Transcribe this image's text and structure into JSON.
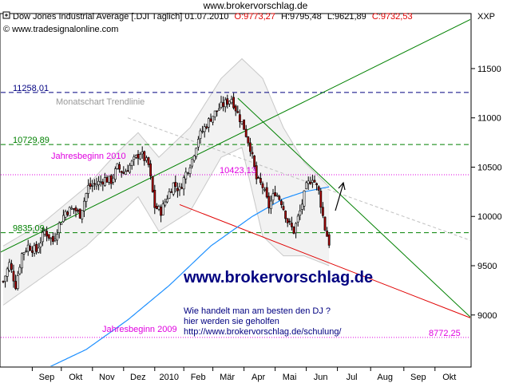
{
  "page_title": "www.brokervorschlag.de",
  "header": {
    "name": "Dow Jones Industrial Average [.DJI  Täglich] 01.07.2010",
    "o": "O:9773,27",
    "h": "H:9795,48",
    "l": "L:9621,89",
    "c": "C:9732,53",
    "copyright": "© www.tradesignalonline.com"
  },
  "colors": {
    "up": "#ffffff",
    "down": "#a40000",
    "resistance_green": "#008000",
    "support_red": "#e00000",
    "moving_average": "#1e90ff",
    "level_blue": "#000080",
    "level_magenta": "#e000e0",
    "watermark": "#000080"
  },
  "annotations": {
    "monatschart": "Monatschart Trendlinie",
    "jahresbeginn_2010": "Jahresbeginn 2010",
    "jahresbeginn_2009": "Jahresbeginn 2009",
    "watermark": "www.brokervorschlag.de",
    "info_line1": "Wie handelt man am besten  den DJ ?",
    "info_line2": "hier werden sie geholfen",
    "info_line3": "http://www.brokervorschlag.de/schulung/"
  },
  "chart_data": {
    "type": "candlestick",
    "symbol": "XXP",
    "x_ticks": [
      "Sep",
      "Okt",
      "Nov",
      "Dez",
      "2010",
      "Feb",
      "Mär",
      "Apr",
      "Mai",
      "Jun",
      "Jul",
      "Aug",
      "Sep",
      "Okt"
    ],
    "y_ticks": [
      9000,
      9500,
      10000,
      10500,
      11000,
      11500
    ],
    "ylim": [
      8480,
      12050
    ],
    "levels": [
      {
        "label": "11258,01",
        "value": 11258.01,
        "style": "dashed",
        "color": "#000080"
      },
      {
        "label": "10729,89",
        "value": 10729.89,
        "style": "dashed",
        "color": "#008000"
      },
      {
        "label": "10423,13",
        "value": 10423.13,
        "style": "dotted",
        "color": "#e000e0"
      },
      {
        "label": "9835,09",
        "value": 9835.09,
        "style": "dashed",
        "color": "#008000"
      },
      {
        "label": "8772,25",
        "value": 8772.25,
        "style": "dotted",
        "color": "#e000e0"
      }
    ],
    "close_path": [
      [
        0,
        9340
      ],
      [
        3,
        9520
      ],
      [
        6,
        9300
      ],
      [
        9,
        9620
      ],
      [
        12,
        9700
      ],
      [
        16,
        9650
      ],
      [
        20,
        9850
      ],
      [
        24,
        9750
      ],
      [
        27,
        9920
      ],
      [
        30,
        10050
      ],
      [
        34,
        10080
      ],
      [
        37,
        10020
      ],
      [
        41,
        10300
      ],
      [
        45,
        10330
      ],
      [
        49,
        10380
      ],
      [
        52,
        10360
      ],
      [
        55,
        10500
      ],
      [
        58,
        10440
      ],
      [
        62,
        10540
      ],
      [
        66,
        10650
      ],
      [
        70,
        10520
      ],
      [
        73,
        10100
      ],
      [
        76,
        10050
      ],
      [
        79,
        10200
      ],
      [
        82,
        10330
      ],
      [
        85,
        10270
      ],
      [
        88,
        10440
      ],
      [
        91,
        10580
      ],
      [
        94,
        10800
      ],
      [
        97,
        10900
      ],
      [
        100,
        11000
      ],
      [
        104,
        11100
      ],
      [
        107,
        11150
      ],
      [
        110,
        11200
      ],
      [
        113,
        11040
      ],
      [
        116,
        10900
      ],
      [
        119,
        10700
      ],
      [
        122,
        10380
      ],
      [
        125,
        10300
      ],
      [
        128,
        10100
      ],
      [
        131,
        10250
      ],
      [
        134,
        10150
      ],
      [
        137,
        9950
      ],
      [
        140,
        9850
      ],
      [
        143,
        10050
      ],
      [
        146,
        10300
      ],
      [
        149,
        10400
      ],
      [
        152,
        10250
      ],
      [
        155,
        9880
      ],
      [
        157,
        9732
      ]
    ],
    "bollinger_upper": [
      [
        0,
        9700
      ],
      [
        20,
        9950
      ],
      [
        40,
        10300
      ],
      [
        55,
        10650
      ],
      [
        65,
        10850
      ],
      [
        75,
        10600
      ],
      [
        90,
        10900
      ],
      [
        105,
        11400
      ],
      [
        115,
        11600
      ],
      [
        125,
        11400
      ],
      [
        135,
        10900
      ],
      [
        145,
        10550
      ],
      [
        157,
        10300
      ]
    ],
    "bollinger_lower": [
      [
        0,
        9100
      ],
      [
        20,
        9400
      ],
      [
        40,
        9700
      ],
      [
        55,
        10000
      ],
      [
        65,
        10200
      ],
      [
        75,
        9850
      ],
      [
        90,
        10050
      ],
      [
        105,
        10600
      ],
      [
        115,
        10700
      ],
      [
        125,
        9800
      ],
      [
        135,
        9600
      ],
      [
        145,
        9600
      ],
      [
        157,
        9500
      ]
    ],
    "moving_average": [
      [
        0,
        8300
      ],
      [
        20,
        8450
      ],
      [
        40,
        8650
      ],
      [
        60,
        8950
      ],
      [
        80,
        9300
      ],
      [
        100,
        9700
      ],
      [
        120,
        10000
      ],
      [
        135,
        10180
      ],
      [
        145,
        10250
      ],
      [
        157,
        10300
      ]
    ],
    "trendlines": [
      {
        "name": "Monatschart Trendlinie",
        "from": [
          -2,
          9630
        ],
        "to": [
          230,
          12050
        ],
        "color": "#008000"
      },
      {
        "name": "resistance",
        "from": [
          113,
          11200
        ],
        "to": [
          230,
          8880
        ],
        "color": "#008000"
      },
      {
        "name": "support",
        "from": [
          85,
          10120
        ],
        "to": [
          230,
          8930
        ],
        "color": "#e00000"
      },
      {
        "name": "dotted_projection",
        "from": [
          60,
          11000
        ],
        "to": [
          230,
          9720
        ],
        "color": "#c0c0c0"
      }
    ]
  }
}
